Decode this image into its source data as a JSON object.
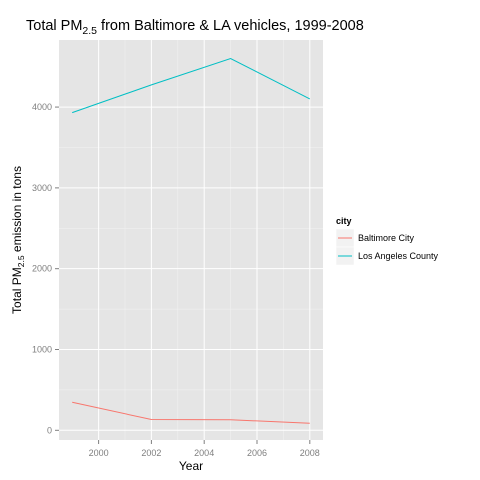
{
  "chart_data": {
    "type": "line",
    "title": {
      "pre": "Total PM",
      "sub": "2.5",
      "post": " from Baltimore & LA vehicles, 1999-2008"
    },
    "xlabel": "Year",
    "ylabel": {
      "pre": "Total PM",
      "sub": "2.5",
      "post": " emission in tons"
    },
    "xlim": [
      1998.5,
      2008.5
    ],
    "ylim": [
      -120,
      4830
    ],
    "x_ticks": [
      2000,
      2002,
      2004,
      2006,
      2008
    ],
    "y_ticks": [
      0,
      1000,
      2000,
      3000,
      4000
    ],
    "grid": true,
    "legend": {
      "title": "city",
      "position": "right"
    },
    "x": [
      1999,
      2002,
      2005,
      2008
    ],
    "series": [
      {
        "name": "Baltimore City",
        "color": "#F8766D",
        "values": [
          347,
          134,
          130,
          88
        ]
      },
      {
        "name": "Los Angeles County",
        "color": "#00BFC4",
        "values": [
          3931,
          4274,
          4601,
          4101
        ]
      }
    ]
  }
}
